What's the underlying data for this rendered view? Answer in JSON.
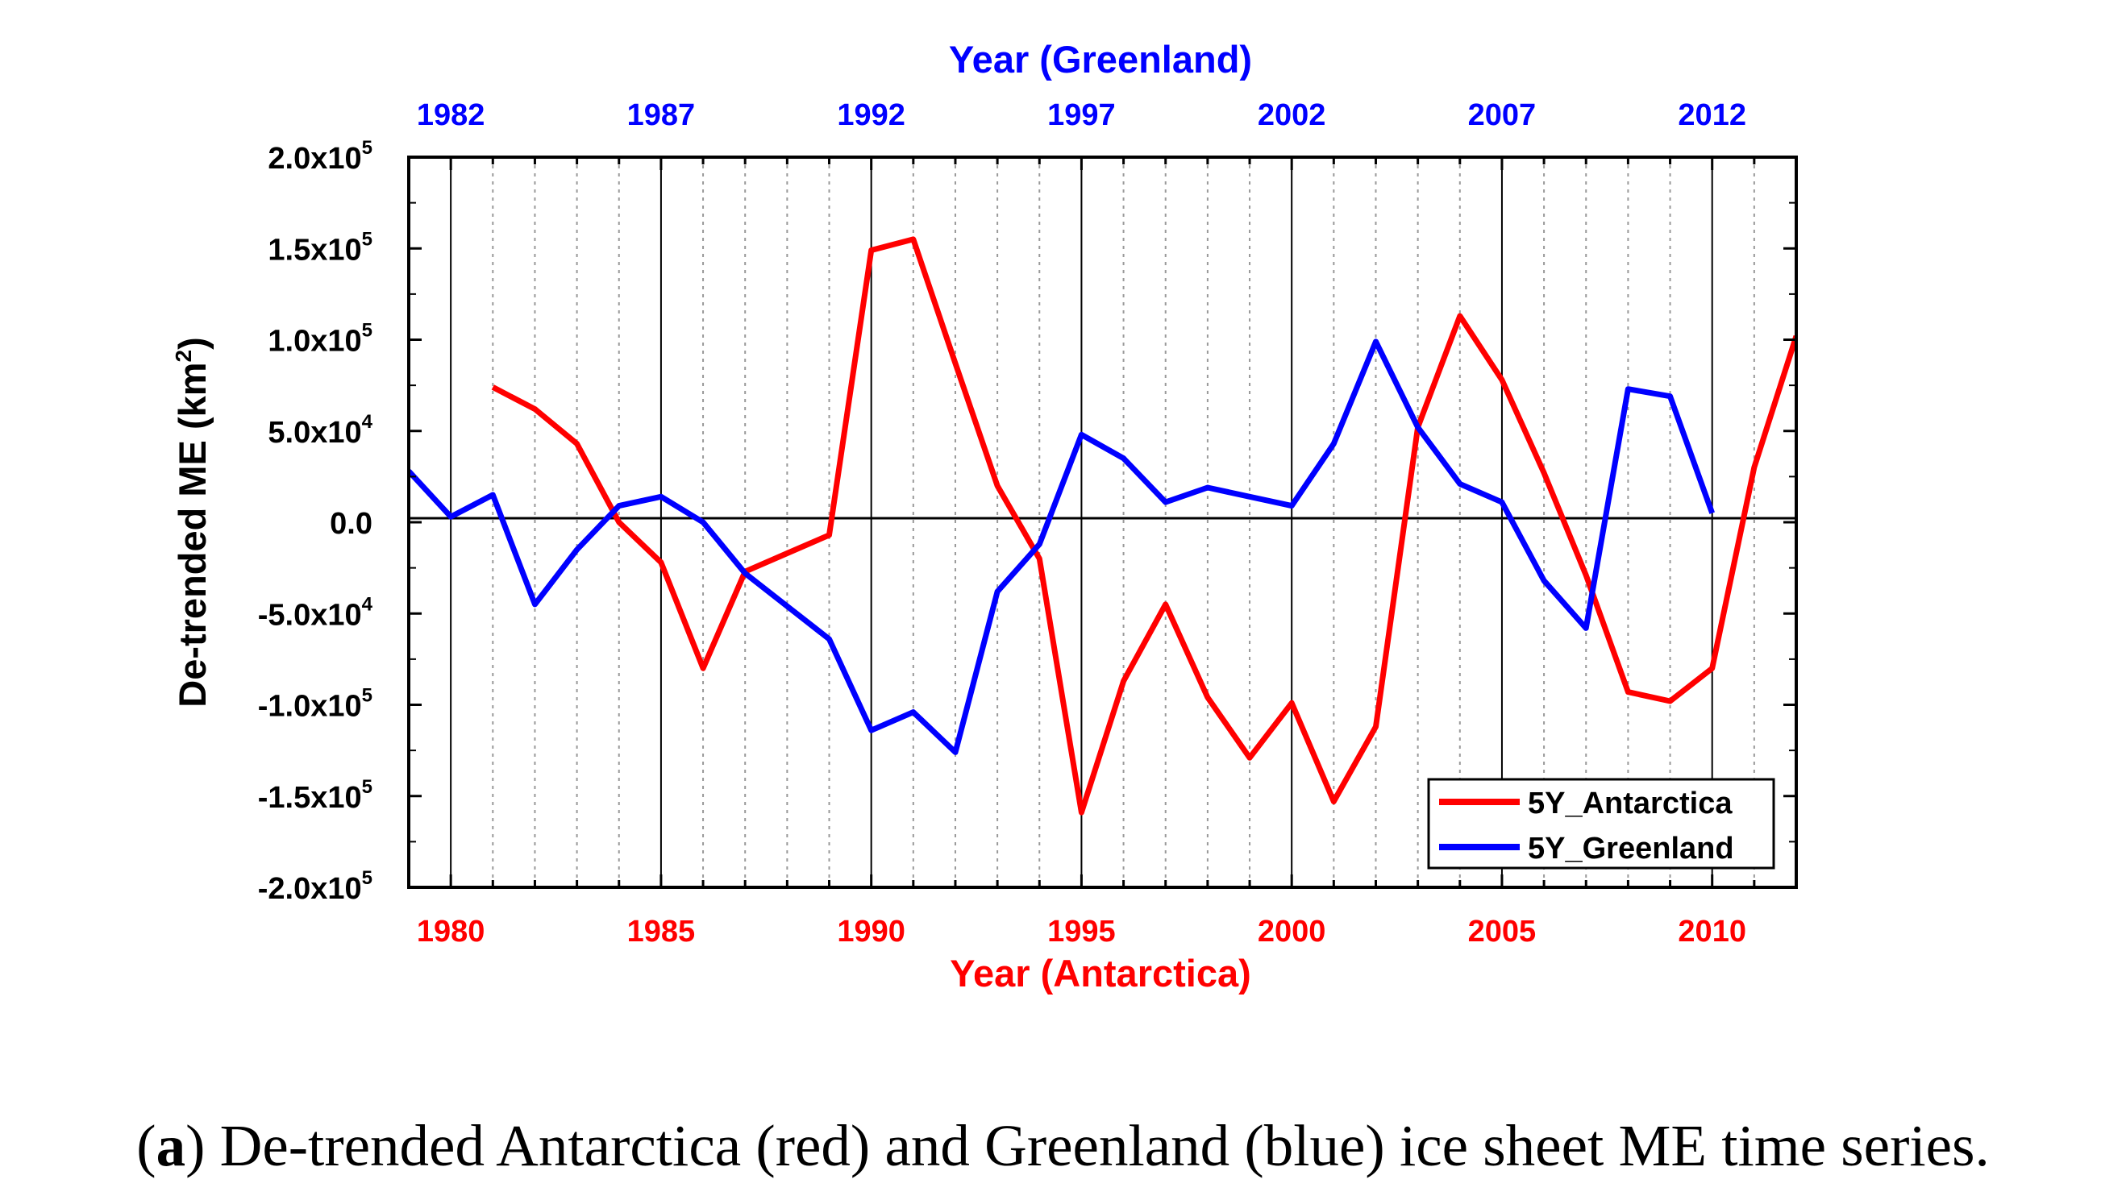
{
  "chart_data": {
    "type": "line",
    "ylabel": "De-trended ME (km",
    "ylabel_sup": "2",
    "ylabel_close": ")",
    "ylim": [
      -200000,
      200000
    ],
    "yticks": [
      {
        "value": 200000,
        "mant": "2.0x10",
        "exp": "5"
      },
      {
        "value": 150000,
        "mant": "1.5x10",
        "exp": "5"
      },
      {
        "value": 100000,
        "mant": "1.0x10",
        "exp": "5"
      },
      {
        "value": 50000,
        "mant": "5.0x10",
        "exp": "4"
      },
      {
        "value": 0,
        "mant": "0.0",
        "exp": ""
      },
      {
        "value": -50000,
        "mant": "-5.0x10",
        "exp": "4"
      },
      {
        "value": -100000,
        "mant": "-1.0x10",
        "exp": "5"
      },
      {
        "value": -150000,
        "mant": "-1.5x10",
        "exp": "5"
      },
      {
        "value": -200000,
        "mant": "-2.0x10",
        "exp": "5"
      }
    ],
    "bottom_axis": {
      "label": "Year (Antarctica)",
      "range": [
        1979,
        2012
      ],
      "ticks": [
        "1980",
        "1985",
        "1990",
        "1995",
        "2000",
        "2005",
        "2010"
      ]
    },
    "top_axis": {
      "label": "Year (Greenland)",
      "range": [
        1981,
        2014
      ],
      "ticks": [
        "1982",
        "1987",
        "1992",
        "1997",
        "2002",
        "2007",
        "2012"
      ]
    },
    "series": [
      {
        "name": "5Y_Antarctica",
        "color": "#ff0000",
        "axis": "bottom",
        "x": [
          1981,
          1982,
          1983,
          1984,
          1985,
          1986,
          1987,
          1988,
          1989,
          1990,
          1991,
          1992,
          1993,
          1994,
          1995,
          1996,
          1997,
          1998,
          1999,
          2000,
          2001,
          2002,
          2003,
          2004,
          2005,
          2006,
          2007,
          2008,
          2009,
          2010,
          2011,
          2012
        ],
        "values": [
          74000,
          62000,
          43000,
          0,
          -22000,
          -80000,
          -27000,
          -17000,
          -7000,
          149000,
          155000,
          87000,
          20000,
          -20000,
          -159000,
          -87000,
          -45000,
          -96000,
          -129000,
          -99000,
          -153000,
          -112000,
          52000,
          113000,
          78000,
          27000,
          -29000,
          -93000,
          -98000,
          -80000,
          30000,
          102000
        ]
      },
      {
        "name": "5Y_Greenland",
        "color": "#0000ff",
        "axis": "bottom",
        "x": [
          1979,
          1980,
          1981,
          1982,
          1983,
          1984,
          1985,
          1986,
          1987,
          1988,
          1989,
          1990,
          1991,
          1992,
          1993,
          1994,
          1995,
          1996,
          1997,
          1998,
          1999,
          2000,
          2001,
          2002,
          2003,
          2004,
          2005,
          2006,
          2007,
          2008,
          2009,
          2010
        ],
        "values": [
          28000,
          3000,
          15000,
          -45000,
          -15000,
          9000,
          14000,
          0,
          -28000,
          -46000,
          -64000,
          -114000,
          -104000,
          -126000,
          -38000,
          -12000,
          48000,
          35000,
          11000,
          19000,
          14000,
          9000,
          43000,
          99000,
          52000,
          21000,
          11000,
          -32000,
          -58000,
          73000,
          69000,
          5000
        ]
      }
    ],
    "legend": [
      "5Y_Antarctica",
      "5Y_Greenland"
    ],
    "legend_position": "bottom-right"
  },
  "caption": {
    "label": "a",
    "open": "(",
    "close": ")",
    "text": " De-trended Antarctica (red) and Greenland (blue) ice sheet ME time series."
  }
}
